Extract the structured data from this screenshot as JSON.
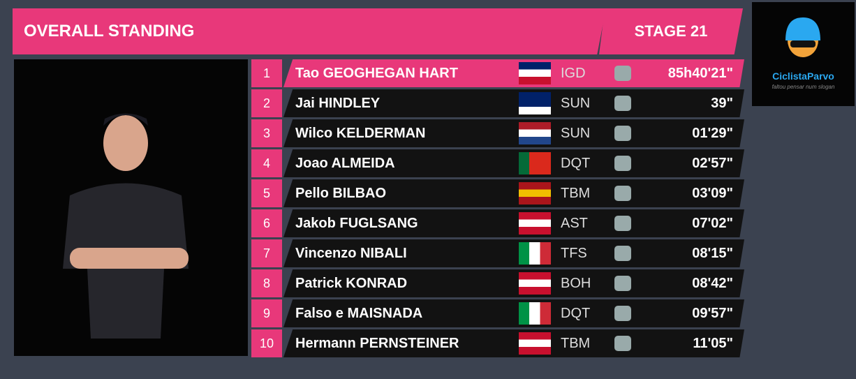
{
  "header": {
    "title": "OVERALL STANDING",
    "stage": "STAGE 21"
  },
  "logo": {
    "name": "CiclistaParvo",
    "tagline": "faltou pensar num slogan"
  },
  "rows": [
    {
      "rank": "1",
      "name": "Tao GEOGHEGAN HART",
      "team": "IGD",
      "time": "85h40'21\""
    },
    {
      "rank": "2",
      "name": "Jai HINDLEY",
      "team": "SUN",
      "time": "39\""
    },
    {
      "rank": "3",
      "name": "Wilco KELDERMAN",
      "team": "SUN",
      "time": "01'29\""
    },
    {
      "rank": "4",
      "name": "Joao ALMEIDA",
      "team": "DQT",
      "time": "02'57\""
    },
    {
      "rank": "5",
      "name": "Pello BILBAO",
      "team": "TBM",
      "time": "03'09\""
    },
    {
      "rank": "6",
      "name": "Jakob FUGLSANG",
      "team": "AST",
      "time": "07'02\""
    },
    {
      "rank": "7",
      "name": "Vincenzo NIBALI",
      "team": "TFS",
      "time": "08'15\""
    },
    {
      "rank": "8",
      "name": "Patrick KONRAD",
      "team": "BOH",
      "time": "08'42\""
    },
    {
      "rank": "9",
      "name": "Falso e MAISNADA",
      "team": "DQT",
      "time": "09'57\""
    },
    {
      "rank": "10",
      "name": "Hermann PERNSTEINER",
      "team": "TBM",
      "time": "11'05\""
    }
  ]
}
